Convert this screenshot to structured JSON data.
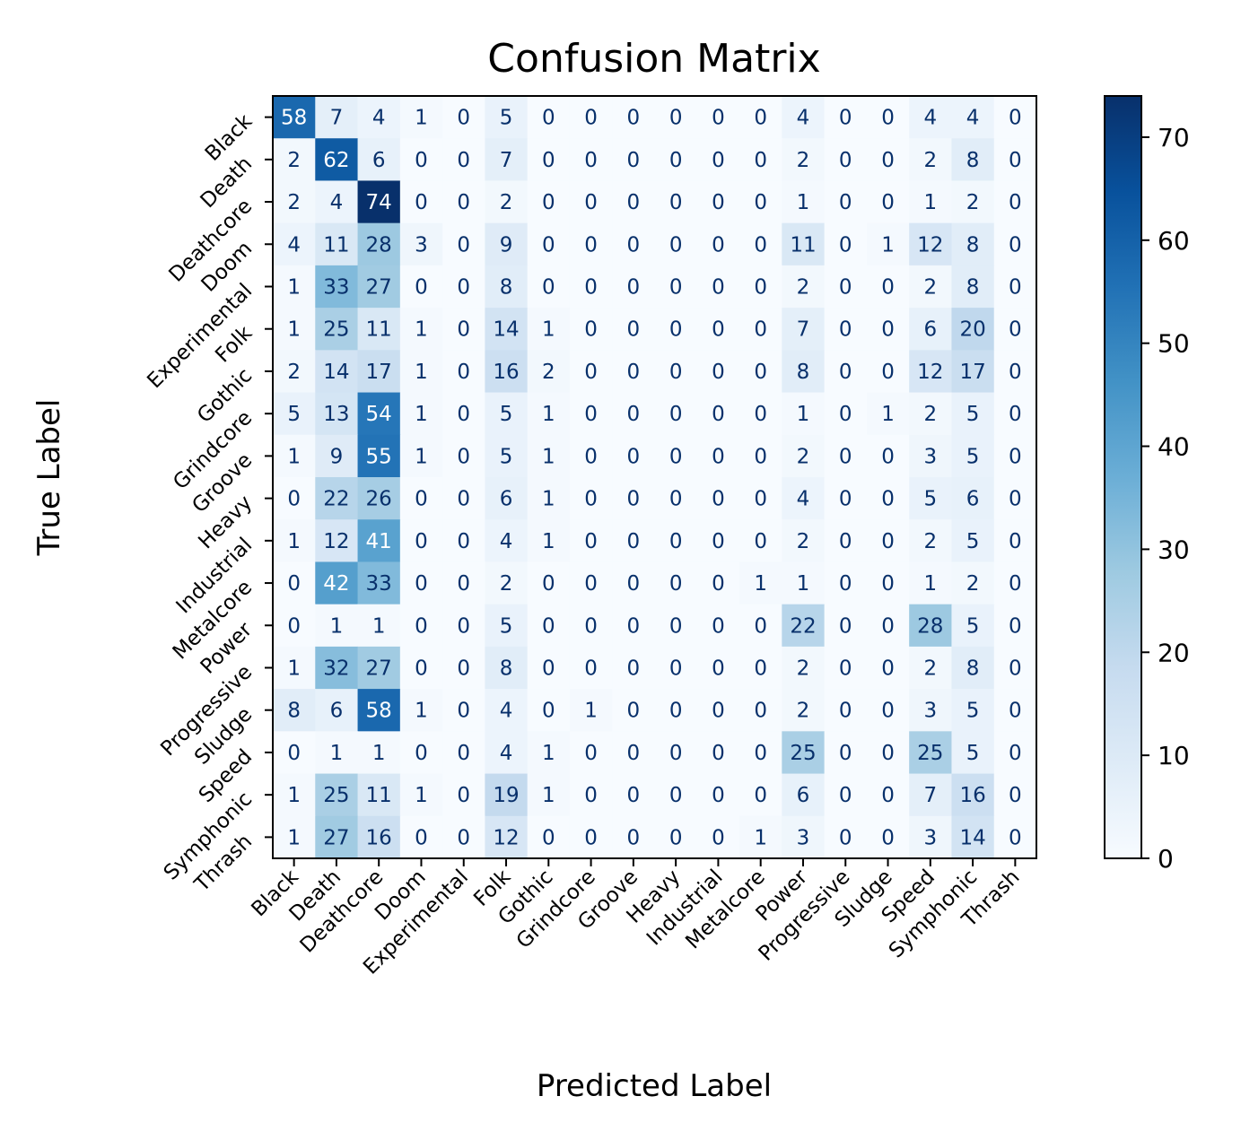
{
  "chart_data": {
    "type": "heatmap",
    "title": "Confusion Matrix",
    "xlabel": "Predicted Label",
    "ylabel": "True Label",
    "x_categories": [
      "Black",
      "Death",
      "Deathcore",
      "Doom",
      "Experimental",
      "Folk",
      "Gothic",
      "Grindcore",
      "Groove",
      "Heavy",
      "Industrial",
      "Metalcore",
      "Power",
      "Progressive",
      "Sludge",
      "Speed",
      "Symphonic",
      "Thrash"
    ],
    "y_categories": [
      "Black",
      "Death",
      "Deathcore",
      "Doom",
      "Experimental",
      "Folk",
      "Gothic",
      "Grindcore",
      "Groove",
      "Heavy",
      "Industrial",
      "Metalcore",
      "Power",
      "Progressive",
      "Sludge",
      "Speed",
      "Symphonic",
      "Thrash"
    ],
    "values": [
      [
        58,
        7,
        4,
        1,
        0,
        5,
        0,
        0,
        0,
        0,
        0,
        0,
        4,
        0,
        0,
        4,
        4,
        0
      ],
      [
        2,
        62,
        6,
        0,
        0,
        7,
        0,
        0,
        0,
        0,
        0,
        0,
        2,
        0,
        0,
        2,
        8,
        0
      ],
      [
        2,
        4,
        74,
        0,
        0,
        2,
        0,
        0,
        0,
        0,
        0,
        0,
        1,
        0,
        0,
        1,
        2,
        0
      ],
      [
        4,
        11,
        28,
        3,
        0,
        9,
        0,
        0,
        0,
        0,
        0,
        0,
        11,
        0,
        1,
        12,
        8,
        0
      ],
      [
        1,
        33,
        27,
        0,
        0,
        8,
        0,
        0,
        0,
        0,
        0,
        0,
        2,
        0,
        0,
        2,
        8,
        0
      ],
      [
        1,
        25,
        11,
        1,
        0,
        14,
        1,
        0,
        0,
        0,
        0,
        0,
        7,
        0,
        0,
        6,
        20,
        0
      ],
      [
        2,
        14,
        17,
        1,
        0,
        16,
        2,
        0,
        0,
        0,
        0,
        0,
        8,
        0,
        0,
        12,
        17,
        0
      ],
      [
        5,
        13,
        54,
        1,
        0,
        5,
        1,
        0,
        0,
        0,
        0,
        0,
        1,
        0,
        1,
        2,
        5,
        0
      ],
      [
        1,
        9,
        55,
        1,
        0,
        5,
        1,
        0,
        0,
        0,
        0,
        0,
        2,
        0,
        0,
        3,
        5,
        0
      ],
      [
        0,
        22,
        26,
        0,
        0,
        6,
        1,
        0,
        0,
        0,
        0,
        0,
        4,
        0,
        0,
        5,
        6,
        0
      ],
      [
        1,
        12,
        41,
        0,
        0,
        4,
        1,
        0,
        0,
        0,
        0,
        0,
        2,
        0,
        0,
        2,
        5,
        0
      ],
      [
        0,
        42,
        33,
        0,
        0,
        2,
        0,
        0,
        0,
        0,
        0,
        1,
        1,
        0,
        0,
        1,
        2,
        0
      ],
      [
        0,
        1,
        1,
        0,
        0,
        5,
        0,
        0,
        0,
        0,
        0,
        0,
        22,
        0,
        0,
        28,
        5,
        0
      ],
      [
        1,
        32,
        27,
        0,
        0,
        8,
        0,
        0,
        0,
        0,
        0,
        0,
        2,
        0,
        0,
        2,
        8,
        0
      ],
      [
        8,
        6,
        58,
        1,
        0,
        4,
        0,
        1,
        0,
        0,
        0,
        0,
        2,
        0,
        0,
        3,
        5,
        0
      ],
      [
        0,
        1,
        1,
        0,
        0,
        4,
        1,
        0,
        0,
        0,
        0,
        0,
        25,
        0,
        0,
        25,
        5,
        0
      ],
      [
        1,
        25,
        11,
        1,
        0,
        19,
        1,
        0,
        0,
        0,
        0,
        0,
        6,
        0,
        0,
        7,
        16,
        0
      ],
      [
        1,
        27,
        16,
        0,
        0,
        12,
        0,
        0,
        0,
        0,
        0,
        1,
        3,
        0,
        0,
        3,
        14,
        0
      ]
    ],
    "colormap": "Blues",
    "vmin": 0,
    "vmax": 74,
    "colorbar_ticks": [
      0,
      10,
      20,
      30,
      40,
      50,
      60,
      70
    ],
    "colors": {
      "low": "#f7fbff",
      "high": "#08306b",
      "text_dark": "#08306b",
      "text_light": "#ffffff"
    }
  }
}
